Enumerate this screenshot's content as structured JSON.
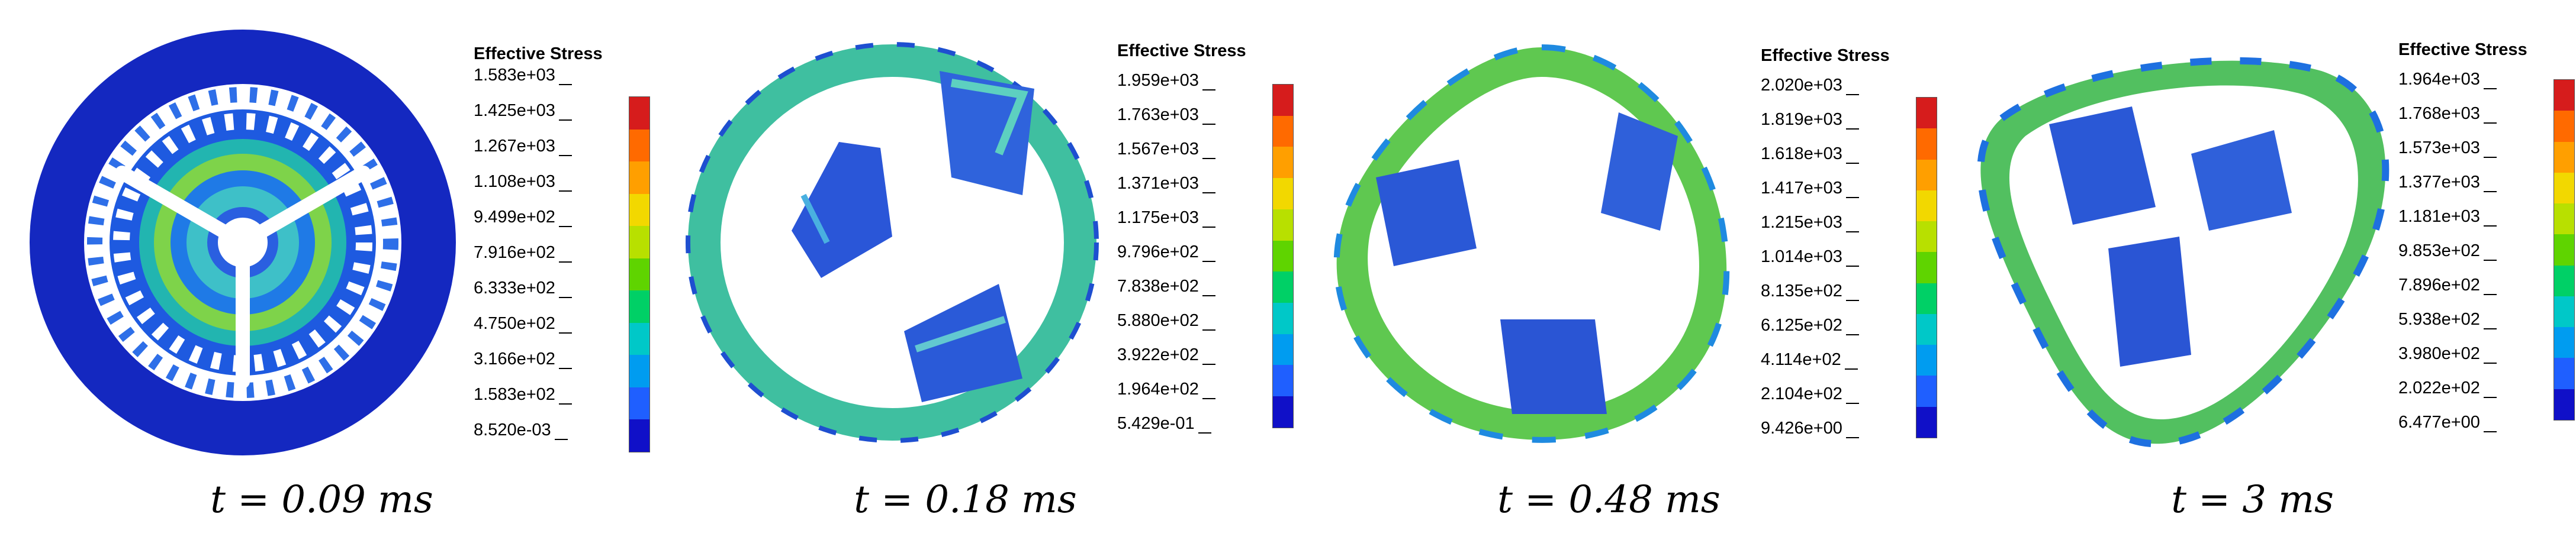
{
  "panels": [
    {
      "caption": "t = 0.09 ms",
      "legend": {
        "title": "Effective Stress",
        "ticks": [
          "1.583e+03",
          "1.425e+03",
          "1.267e+03",
          "1.108e+03",
          "9.499e+02",
          "7.916e+02",
          "6.333e+02",
          "4.750e+02",
          "3.166e+02",
          "1.583e+02",
          "8.520e-03"
        ]
      }
    },
    {
      "caption": "t = 0.18 ms",
      "legend": {
        "title": "Effective Stress",
        "ticks": [
          "1.959e+03",
          "1.763e+03",
          "1.567e+03",
          "1.371e+03",
          "1.175e+03",
          "9.796e+02",
          "7.838e+02",
          "5.880e+02",
          "3.922e+02",
          "1.964e+02",
          "5.429e-01"
        ]
      }
    },
    {
      "caption": "t = 0.48 ms",
      "legend": {
        "title": "Effective Stress",
        "ticks": [
          "2.020e+03",
          "1.819e+03",
          "1.618e+03",
          "1.417e+03",
          "1.215e+03",
          "1.014e+03",
          "8.135e+02",
          "6.125e+02",
          "4.114e+02",
          "2.104e+02",
          "9.426e+00"
        ]
      }
    },
    {
      "caption": "t = 3 ms",
      "legend": {
        "title": "Effective Stress",
        "ticks": [
          "1.964e+03",
          "1.768e+03",
          "1.573e+03",
          "1.377e+03",
          "1.181e+03",
          "9.853e+02",
          "7.896e+02",
          "5.938e+02",
          "3.980e+02",
          "2.022e+02",
          "6.477e+00"
        ]
      }
    }
  ],
  "colormap": [
    "#d61c1c",
    "#ff6a00",
    "#ff9f00",
    "#f2d800",
    "#b8e000",
    "#5fd400",
    "#00d066",
    "#00c8c8",
    "#009cf0",
    "#1f5fff",
    "#1010c8"
  ]
}
